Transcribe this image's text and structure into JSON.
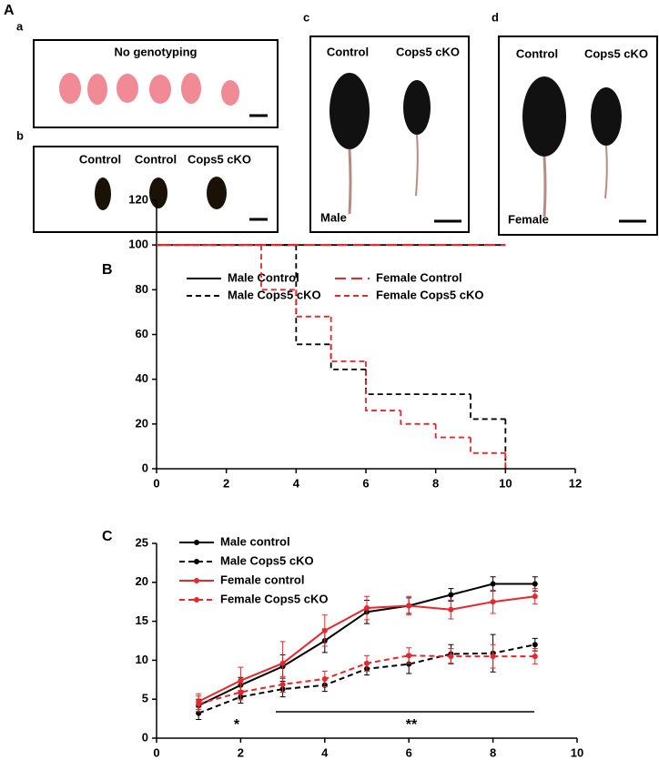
{
  "panel_a": {
    "label": "A",
    "photo_panels": [
      {
        "label": "a",
        "caption": "No genotyping"
      },
      {
        "label": "b",
        "groups": [
          "Control",
          "Control",
          "Cops5 cKO"
        ]
      },
      {
        "label": "c",
        "groups": [
          "Control",
          "Cops5 cKO"
        ],
        "sex": "Male"
      },
      {
        "label": "d",
        "groups": [
          "Control",
          "Cops5 cKO"
        ],
        "sex": "Female"
      }
    ]
  },
  "chart_data": [
    {
      "type": "step",
      "panel_label": "B",
      "grid": false,
      "legend": "top-left",
      "xlim": [
        0,
        12
      ],
      "xticks": [
        0,
        2,
        4,
        6,
        8,
        10,
        12
      ],
      "ylim": [
        0,
        120
      ],
      "yticks": [
        0,
        20,
        40,
        60,
        80,
        100,
        120
      ],
      "series": [
        {
          "name": "Male Control",
          "color": "#000000",
          "line_style": "solid",
          "x": [
            0,
            10
          ],
          "values": [
            100,
            100
          ]
        },
        {
          "name": "Male Cops5 cKO",
          "color": "#000000",
          "line_style": "dashed",
          "x": [
            0,
            4,
            5,
            6,
            9,
            10
          ],
          "values": [
            100,
            55.6,
            44.4,
            33.3,
            22.2,
            0
          ]
        },
        {
          "name": "Female Control",
          "color": "#e8262b",
          "line_style": "long-dashed",
          "x": [
            0,
            10
          ],
          "values": [
            100,
            100
          ]
        },
        {
          "name": "Female Cops5 cKO",
          "color": "#e8262b",
          "line_style": "dashed",
          "x": [
            0,
            3,
            4,
            5,
            6,
            7,
            8,
            9,
            10
          ],
          "values": [
            100,
            80,
            68,
            48,
            26,
            20,
            14,
            7,
            0
          ]
        }
      ]
    },
    {
      "type": "line",
      "panel_label": "C",
      "grid": false,
      "legend": "top-left",
      "xlim": [
        0,
        10
      ],
      "xticks": [
        0,
        2,
        4,
        6,
        8,
        10
      ],
      "ylim": [
        0,
        25
      ],
      "yticks": [
        0,
        5,
        10,
        15,
        20,
        25
      ],
      "x": [
        1,
        2,
        3,
        4,
        5,
        6,
        7,
        8,
        9
      ],
      "annotations": [
        "*",
        "**"
      ],
      "series": [
        {
          "name": "Male control",
          "color": "#000000",
          "line_style": "solid",
          "values": [
            4.2,
            6.8,
            9.2,
            12.5,
            16.2,
            17,
            18.4,
            19.8,
            19.8
          ],
          "errors": [
            0.8,
            1,
            1.5,
            1.5,
            1.5,
            1,
            0.8,
            0.9,
            0.9
          ]
        },
        {
          "name": "Male Cops5 cKO",
          "color": "#000000",
          "line_style": "dashed",
          "values": [
            3.2,
            5.3,
            6.3,
            6.8,
            8.9,
            9.5,
            10.8,
            10.9,
            12
          ],
          "errors": [
            0.8,
            0.8,
            1,
            0.8,
            0.8,
            1.2,
            1.2,
            2.4,
            0.8
          ]
        },
        {
          "name": "Female control",
          "color": "#e8262b",
          "line_style": "solid",
          "values": [
            4.7,
            7.4,
            9.6,
            13.8,
            16.7,
            17,
            16.5,
            17.5,
            18.2
          ],
          "errors": [
            1,
            1.7,
            2.8,
            2,
            1.5,
            1.2,
            1.2,
            1.5,
            1
          ]
        },
        {
          "name": "Female Cops5 cKO",
          "color": "#e8262b",
          "line_style": "dashed",
          "values": [
            4.4,
            5.9,
            6.9,
            7.6,
            9.6,
            10.6,
            10.5,
            10.5,
            10.5
          ],
          "errors": [
            1,
            1,
            1,
            1,
            1,
            1,
            1,
            1.5,
            1
          ]
        }
      ]
    }
  ]
}
